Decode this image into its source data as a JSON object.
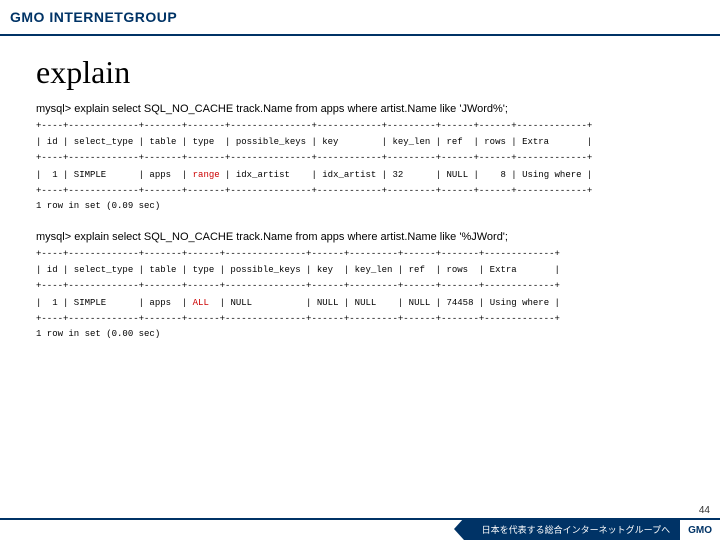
{
  "header": {
    "logo": "GMO INTERNETGROUP"
  },
  "title": "explain",
  "block1": {
    "query": "mysql> explain select SQL_NO_CACHE track.Name from apps where artist.Name like 'JWord%';",
    "sep": "+----+-------------+-------+-------+---------------+------------+---------+------+------+-------------+",
    "head": "| id | select_type | table | type  | possible_keys | key        | key_len | ref  | rows | Extra       |",
    "row_pre": "|  1 | SIMPLE      | apps  | ",
    "row_hl": "range",
    "row_post": " | idx_artist    | idx_artist | 32      | NULL |    8 | Using where |",
    "result": "1 row in set (0.09 sec)"
  },
  "block2": {
    "query": "mysql> explain select SQL_NO_CACHE track.Name from apps where artist.Name like '%JWord';",
    "sep": "+----+-------------+-------+------+---------------+------+---------+------+-------+-------------+",
    "head": "| id | select_type | table | type | possible_keys | key  | key_len | ref  | rows  | Extra       |",
    "row_pre": "|  1 | SIMPLE      | apps  | ",
    "row_hl": "ALL",
    "row_post": "  | NULL          | NULL | NULL    | NULL | 74458 | Using where |",
    "result": "1 row in set (0.00 sec)"
  },
  "footer": {
    "tagline": "日本を代表する総合インターネットグループへ",
    "logo": "GMO"
  },
  "page": "44"
}
